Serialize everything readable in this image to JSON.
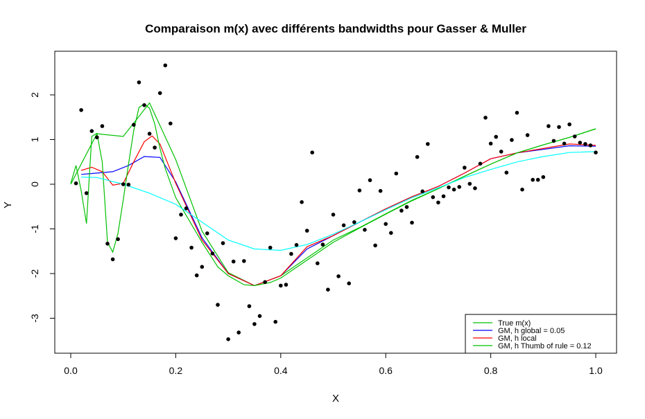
{
  "chart_data": {
    "type": "scatter",
    "title": "Comparaison m(x) avec différents bandwidths pour Gasser & Muller",
    "xlabel": "X",
    "ylabel": "Y",
    "xlim": [
      -0.03,
      1.04
    ],
    "ylim": [
      -3.7,
      2.9
    ],
    "xticks": [
      "0.0",
      "0.2",
      "0.4",
      "0.6",
      "0.8",
      "1.0"
    ],
    "yticks": [
      "-3",
      "-2",
      "-1",
      "0",
      "1",
      "2"
    ],
    "grid": false,
    "legend_position": "bottom-right",
    "points": {
      "x": [
        0.01,
        0.02,
        0.03,
        0.04,
        0.05,
        0.06,
        0.07,
        0.08,
        0.09,
        0.1,
        0.11,
        0.12,
        0.13,
        0.14,
        0.15,
        0.16,
        0.17,
        0.18,
        0.19,
        0.2,
        0.21,
        0.22,
        0.23,
        0.24,
        0.25,
        0.26,
        0.27,
        0.28,
        0.29,
        0.3,
        0.31,
        0.32,
        0.33,
        0.34,
        0.35,
        0.36,
        0.37,
        0.38,
        0.39,
        0.4,
        0.41,
        0.42,
        0.43,
        0.44,
        0.45,
        0.46,
        0.47,
        0.48,
        0.49,
        0.5,
        0.51,
        0.52,
        0.53,
        0.54,
        0.55,
        0.56,
        0.57,
        0.58,
        0.59,
        0.6,
        0.61,
        0.62,
        0.63,
        0.64,
        0.65,
        0.66,
        0.67,
        0.68,
        0.69,
        0.7,
        0.71,
        0.72,
        0.73,
        0.74,
        0.75,
        0.76,
        0.77,
        0.78,
        0.79,
        0.8,
        0.81,
        0.82,
        0.83,
        0.84,
        0.85,
        0.86,
        0.87,
        0.88,
        0.89,
        0.9,
        0.91,
        0.92,
        0.93,
        0.94,
        0.95,
        0.96,
        0.97,
        0.98,
        0.99,
        1.0
      ],
      "y": [
        0.02,
        1.66,
        -0.2,
        1.19,
        1.05,
        1.3,
        -1.33,
        -1.68,
        -1.23,
        0.0,
        -0.01,
        1.33,
        2.28,
        1.77,
        1.13,
        0.82,
        2.04,
        2.66,
        1.36,
        -1.21,
        -0.68,
        -0.54,
        -1.42,
        -2.04,
        -1.85,
        -1.1,
        -1.55,
        -2.7,
        -1.32,
        -3.47,
        -1.73,
        -3.32,
        -1.72,
        -2.73,
        -3.13,
        -2.95,
        -2.19,
        -1.42,
        -3.08,
        -2.27,
        -2.25,
        -1.56,
        -1.36,
        -0.4,
        -1.04,
        0.71,
        -1.77,
        -1.35,
        -2.36,
        -0.68,
        -2.06,
        -0.92,
        -2.22,
        -0.85,
        -0.14,
        -1.02,
        0.09,
        -1.37,
        -0.15,
        -0.89,
        -1.09,
        0.24,
        -0.59,
        -0.51,
        -0.86,
        0.61,
        -0.16,
        0.9,
        -0.29,
        -0.41,
        -0.27,
        -0.07,
        -0.12,
        -0.06,
        0.37,
        0.01,
        -0.09,
        0.46,
        1.49,
        0.91,
        1.06,
        0.73,
        0.26,
        0.99,
        1.6,
        -0.12,
        1.1,
        0.1,
        0.1,
        0.16,
        1.3,
        0.97,
        1.28,
        0.91,
        1.34,
        1.07,
        0.93,
        0.9,
        0.87,
        0.71
      ]
    },
    "series": [
      {
        "name": "True m(x)",
        "color": "#00c000",
        "x": [
          0.0,
          0.05,
          0.1,
          0.15,
          0.2,
          0.25,
          0.3,
          0.35,
          0.4,
          0.45,
          0.5,
          0.55,
          0.6,
          0.65,
          0.7,
          0.75,
          0.8,
          0.85,
          0.9,
          0.95,
          1.0
        ],
        "y": [
          0.0,
          1.13,
          1.07,
          1.82,
          0.55,
          -1.05,
          -1.98,
          -2.27,
          -2.05,
          -1.65,
          -1.25,
          -0.97,
          -0.66,
          -0.36,
          -0.1,
          0.18,
          0.45,
          0.7,
          0.88,
          1.05,
          1.24
        ]
      },
      {
        "name": "GM, h global = 0.05",
        "color": "#0000ff",
        "x": [
          0.02,
          0.05,
          0.08,
          0.11,
          0.14,
          0.17,
          0.2,
          0.25,
          0.3,
          0.35,
          0.4,
          0.45,
          0.5,
          0.55,
          0.6,
          0.65,
          0.7,
          0.75,
          0.8,
          0.85,
          0.9,
          0.95,
          1.0
        ],
        "y": [
          0.22,
          0.25,
          0.28,
          0.42,
          0.62,
          0.6,
          0.05,
          -1.2,
          -2.0,
          -2.27,
          -2.05,
          -1.45,
          -1.15,
          -0.85,
          -0.55,
          -0.28,
          -0.05,
          0.25,
          0.57,
          0.7,
          0.78,
          0.86,
          0.85
        ]
      },
      {
        "name": "GM, h local",
        "color": "#ff0000",
        "x": [
          0.02,
          0.04,
          0.06,
          0.08,
          0.1,
          0.12,
          0.14,
          0.155,
          0.17,
          0.2,
          0.25,
          0.3,
          0.35,
          0.4,
          0.45,
          0.5,
          0.55,
          0.6,
          0.65,
          0.7,
          0.75,
          0.8,
          0.85,
          0.9,
          0.95,
          1.0
        ],
        "y": [
          0.31,
          0.38,
          0.28,
          -0.02,
          0.02,
          0.5,
          0.95,
          1.08,
          0.9,
          0.02,
          -1.25,
          -2.0,
          -2.27,
          -2.05,
          -1.4,
          -1.15,
          -0.85,
          -0.55,
          -0.28,
          -0.05,
          0.25,
          0.57,
          0.7,
          0.8,
          0.9,
          0.87
        ]
      },
      {
        "name": "GM, h Thumb of rule = 0.12",
        "color": "#00c000",
        "x": [
          0.0,
          0.01,
          0.02,
          0.03,
          0.04,
          0.05,
          0.06,
          0.07,
          0.08,
          0.09,
          0.1,
          0.11,
          0.12,
          0.13,
          0.14,
          0.15,
          0.16,
          0.17,
          0.18,
          0.2,
          0.22,
          0.25,
          0.28,
          0.3,
          0.33,
          0.35,
          0.38,
          0.4,
          0.45,
          0.5,
          0.55,
          0.6,
          0.65,
          0.7,
          0.75,
          0.8,
          0.85,
          0.9,
          0.95,
          1.0
        ],
        "y": [
          0.02,
          0.42,
          -0.15,
          -0.88,
          1.07,
          1.14,
          0.5,
          -1.3,
          -1.52,
          -1.1,
          -0.35,
          0.45,
          1.2,
          1.72,
          1.8,
          1.7,
          1.35,
          0.8,
          0.35,
          -0.3,
          -0.7,
          -1.3,
          -1.85,
          -2.05,
          -2.25,
          -2.27,
          -2.2,
          -2.1,
          -1.7,
          -1.3,
          -0.98,
          -0.67,
          -0.37,
          -0.1,
          0.18,
          0.45,
          0.7,
          0.88,
          1.05,
          1.24
        ]
      },
      {
        "name": "",
        "color": "#00ffff",
        "x": [
          0.02,
          0.05,
          0.1,
          0.15,
          0.2,
          0.25,
          0.3,
          0.35,
          0.4,
          0.45,
          0.5,
          0.55,
          0.6,
          0.65,
          0.7,
          0.75,
          0.8,
          0.85,
          0.9,
          0.95,
          1.0
        ],
        "y": [
          0.16,
          0.15,
          0.0,
          -0.2,
          -0.45,
          -0.85,
          -1.25,
          -1.45,
          -1.48,
          -1.35,
          -1.12,
          -0.85,
          -0.57,
          -0.3,
          -0.08,
          0.15,
          0.33,
          0.5,
          0.62,
          0.71,
          0.73
        ]
      }
    ]
  }
}
